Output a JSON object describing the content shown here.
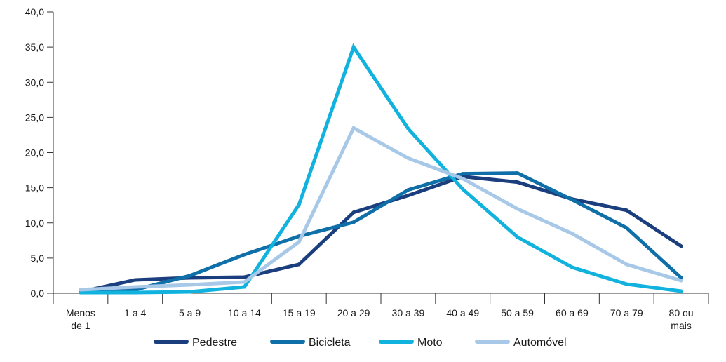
{
  "chart_data": {
    "type": "line",
    "title": "",
    "xlabel": "",
    "ylabel": "",
    "ylim": [
      0,
      40
    ],
    "y_ticks": [
      "0,0",
      "5,0",
      "10,0",
      "15,0",
      "20,0",
      "25,0",
      "30,0",
      "35,0",
      "40,0"
    ],
    "categories": [
      [
        "Menos",
        "de 1"
      ],
      [
        "1 a 4"
      ],
      [
        "5 a 9"
      ],
      [
        "10 a 14"
      ],
      [
        "15 a 19"
      ],
      [
        "20 a 29"
      ],
      [
        "30 a 39"
      ],
      [
        "40 a 49"
      ],
      [
        "50 a 59"
      ],
      [
        "60 a 69"
      ],
      [
        "70 a 79"
      ],
      [
        "80 ou",
        "mais"
      ]
    ],
    "grid": false,
    "legend_position": "bottom",
    "series": [
      {
        "name": "Pedestre",
        "color": "#1b3f7e",
        "values": [
          0.2,
          1.9,
          2.2,
          2.3,
          4.1,
          11.5,
          13.9,
          16.6,
          15.8,
          13.4,
          11.8,
          6.7
        ]
      },
      {
        "name": "Bicicleta",
        "color": "#0f6fa8",
        "values": [
          0.1,
          0.5,
          2.5,
          5.5,
          8.1,
          10.1,
          14.7,
          17.0,
          17.1,
          13.3,
          9.3,
          2.2
        ]
      },
      {
        "name": "Moto",
        "color": "#12b2de",
        "values": [
          0.1,
          0.1,
          0.2,
          0.9,
          12.6,
          35.0,
          23.4,
          14.8,
          8.0,
          3.7,
          1.3,
          0.3
        ]
      },
      {
        "name": "Automóvel",
        "color": "#a8c8e8",
        "values": [
          0.5,
          0.9,
          1.2,
          1.6,
          7.3,
          23.5,
          19.2,
          16.3,
          12.0,
          8.5,
          4.1,
          1.8
        ]
      }
    ]
  }
}
